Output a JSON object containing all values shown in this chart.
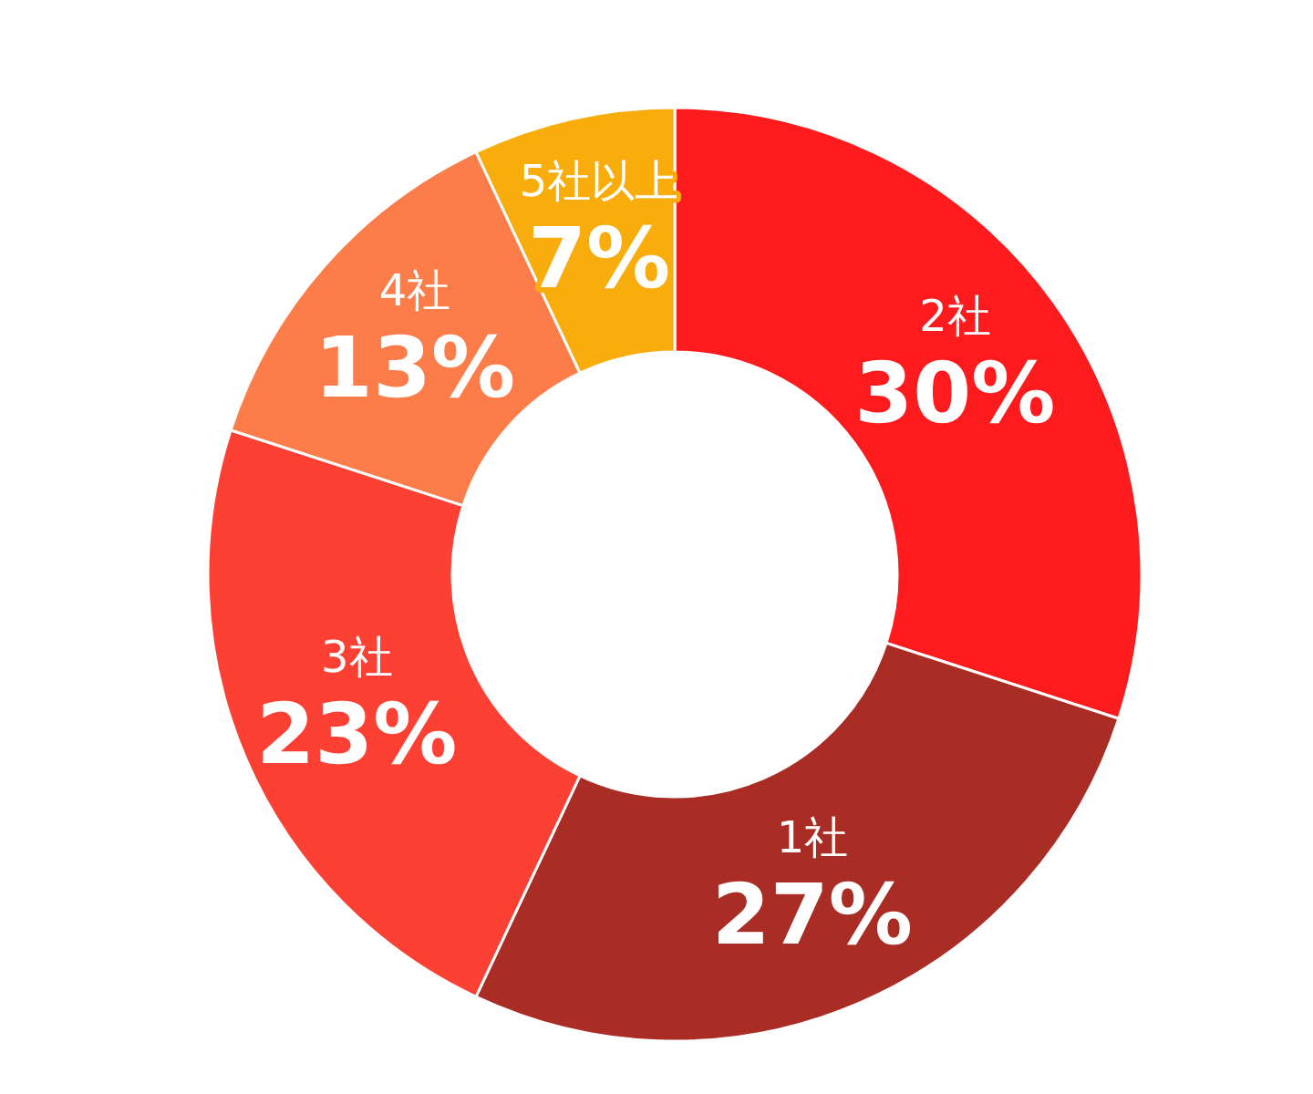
{
  "chart_data": {
    "type": "donut",
    "categories": [
      "2社",
      "1社",
      "3社",
      "4社",
      "5社以上"
    ],
    "values": [
      30,
      27,
      23,
      13,
      7
    ],
    "colors": [
      "#fd1b1e",
      "#a92d24",
      "#fc4134",
      "#fc7c4a",
      "#f8ad0d"
    ],
    "value_labels": [
      "30%",
      "27%",
      "23%",
      "13%",
      "7%"
    ]
  }
}
